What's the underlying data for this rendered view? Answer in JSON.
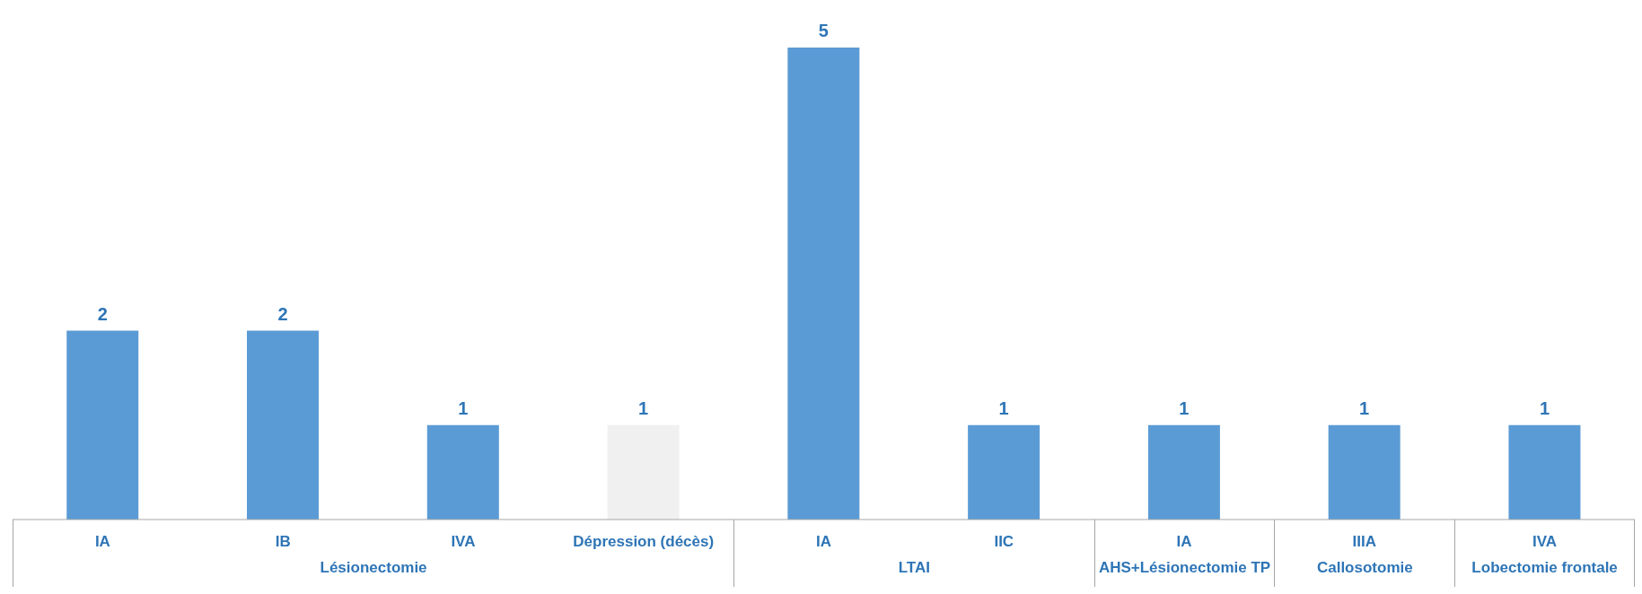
{
  "chart_data": {
    "type": "bar",
    "categories": [
      "IA",
      "IB",
      "IVA",
      "Dépression (décès)",
      "IA",
      "IIC",
      "IA",
      "IIIA",
      "IVA"
    ],
    "values": [
      2,
      2,
      1,
      1,
      5,
      1,
      1,
      1,
      1
    ],
    "colors": [
      "#5b9bd5",
      "#5b9bd5",
      "#5b9bd5",
      "#f0f0f0",
      "#5b9bd5",
      "#5b9bd5",
      "#5b9bd5",
      "#5b9bd5",
      "#5b9bd5"
    ],
    "data_labels": true,
    "grid": false,
    "legend": false,
    "annotations": [
      "Lésionectomie",
      "LTAI",
      "AHS+Lésionectomie TP",
      "Callosotomie",
      "Lobectomie frontale"
    ]
  }
}
